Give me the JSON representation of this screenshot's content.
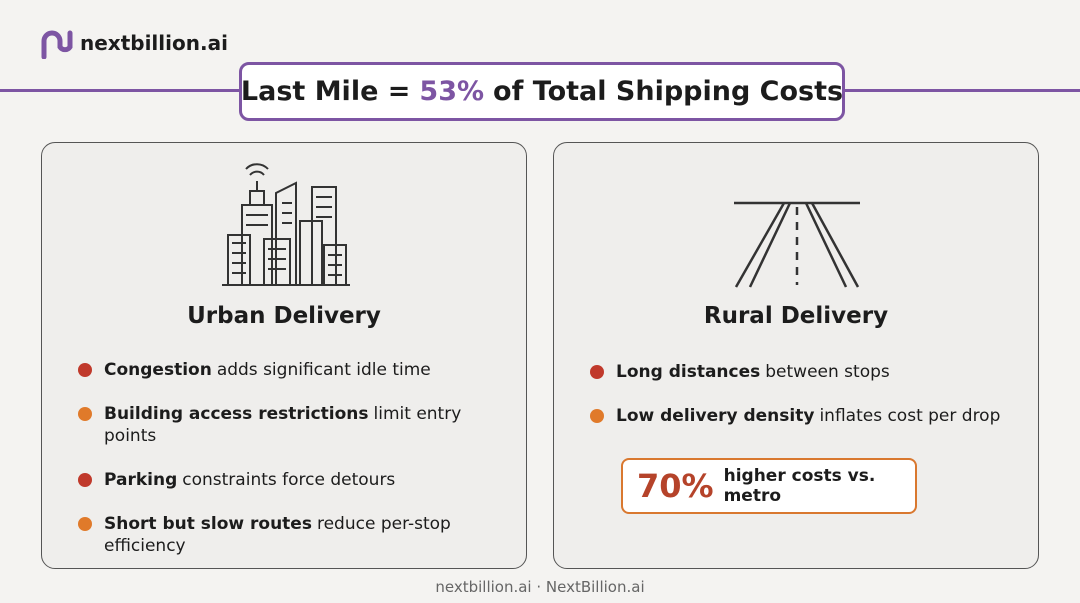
{
  "header": {
    "brand": "nextbillion.ai",
    "title": {
      "prefix": "Last Mile =",
      "highlight": "53%",
      "suffix": "of Total Shipping Costs"
    }
  },
  "cards": [
    {
      "title": "Urban Delivery",
      "bullets": [
        {
          "bold": "Congestion",
          "text": "adds significant idle time"
        },
        {
          "bold": "Building access restrictions",
          "text": "limit entry points"
        },
        {
          "bold": "Parking",
          "text": "constraints force detours"
        },
        {
          "bold": "Short but slow routes",
          "text": "reduce per-stop efficiency"
        }
      ]
    },
    {
      "title": "Rural Delivery",
      "bullets": [
        {
          "bold": "Long distances",
          "text": "between stops"
        },
        {
          "bold": "Low delivery density",
          "text": "inflates cost per drop"
        }
      ],
      "callout": {
        "figure": "70%",
        "text": "higher costs vs. metro"
      }
    }
  ],
  "footer": "nextbillion.ai · NextBillion.ai"
}
